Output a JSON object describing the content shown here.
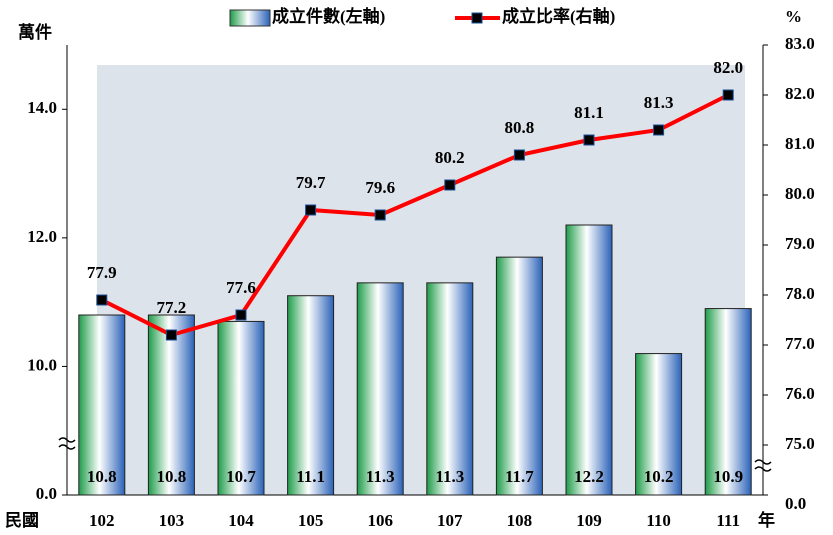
{
  "chart_data": {
    "type": "combo",
    "categories": [
      "102",
      "103",
      "104",
      "105",
      "106",
      "107",
      "108",
      "109",
      "110",
      "111"
    ],
    "x_label_left": "民國",
    "x_label_right": "年",
    "y_label": "萬件",
    "y2_label": "%",
    "ylim": [
      0,
      15
    ],
    "ybreak": [
      0,
      8
    ],
    "yticks": [
      {
        "value": 0,
        "label": "0.0"
      },
      {
        "value": 10,
        "label": "10.0"
      },
      {
        "value": 12,
        "label": "12.0"
      },
      {
        "value": 14,
        "label": "14.0"
      }
    ],
    "y2lim": [
      0,
      83
    ],
    "y2break": [
      0,
      74
    ],
    "y2ticks": [
      {
        "value": 0,
        "label": "0.0"
      },
      {
        "value": 75,
        "label": "75.0"
      },
      {
        "value": 76,
        "label": "76.0"
      },
      {
        "value": 77,
        "label": "77.0"
      },
      {
        "value": 78,
        "label": "78.0"
      },
      {
        "value": 79,
        "label": "79.0"
      },
      {
        "value": 80,
        "label": "80.0"
      },
      {
        "value": 81,
        "label": "81.0"
      },
      {
        "value": 82,
        "label": "82.0"
      },
      {
        "value": 83,
        "label": "83.0"
      }
    ],
    "series": [
      {
        "name": "成立件數(左軸)",
        "type": "bar",
        "color": "#2e9a5a",
        "values": [
          10.8,
          10.8,
          10.7,
          11.1,
          11.3,
          11.3,
          11.7,
          12.2,
          10.2,
          10.9
        ]
      },
      {
        "name": "成立比率(右軸)",
        "type": "line",
        "axis": "y2",
        "color": "#ff0000",
        "values": [
          77.9,
          77.2,
          77.6,
          79.7,
          79.6,
          80.2,
          80.8,
          81.1,
          81.3,
          82
        ],
        "value_labels": [
          "77.9",
          "77.2",
          "77.6",
          "79.7",
          "79.6",
          "80.2",
          "80.8",
          "81.1",
          "81.3",
          "82.0"
        ]
      }
    ]
  }
}
